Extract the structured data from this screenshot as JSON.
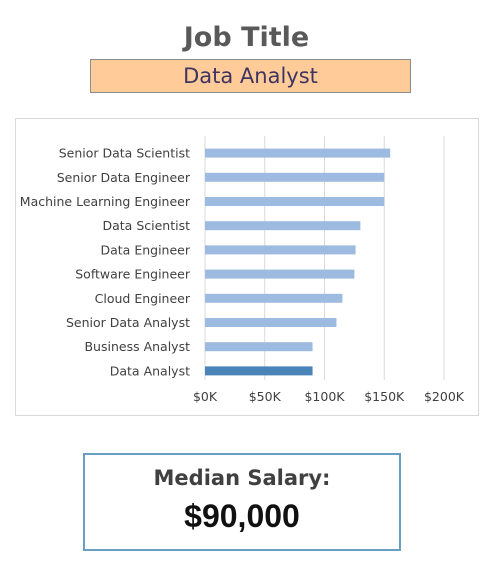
{
  "header": {
    "title": "Job Title",
    "selected_job": "Data Analyst"
  },
  "chart_data": {
    "type": "bar",
    "orientation": "horizontal",
    "categories": [
      "Senior Data Scientist",
      "Senior Data Engineer",
      "Machine Learning Engineer",
      "Data Scientist",
      "Data Engineer",
      "Software Engineer",
      "Cloud Engineer",
      "Senior Data Analyst",
      "Business Analyst",
      "Data Analyst"
    ],
    "values": [
      155000,
      150000,
      150000,
      130000,
      126000,
      125000,
      115000,
      110000,
      90000,
      90000
    ],
    "highlight": "Data Analyst",
    "x_ticks": [
      "$0K",
      "$50K",
      "$100K",
      "$150K",
      "$200K"
    ],
    "xlim": [
      0,
      200000
    ],
    "grid": "vertical",
    "colors": {
      "bar": "#9DBBE0",
      "highlight": "#4A83B8",
      "grid": "#d9d9d9"
    }
  },
  "summary": {
    "label": "Median Salary:",
    "value": "$90,000"
  }
}
